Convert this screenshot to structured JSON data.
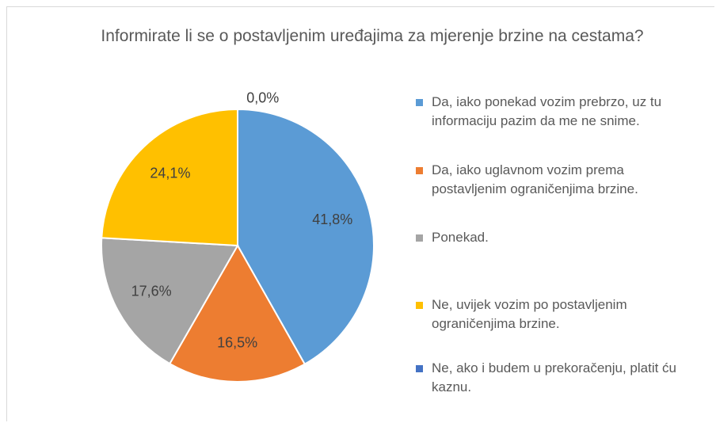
{
  "chart_data": {
    "type": "pie",
    "title": "Informirate li se o postavljenim uređajima za mjerenje brzine na cestama?",
    "categories": [
      "Da, iako ponekad vozim prebrzo, uz tu informaciju pazim da me ne snime.",
      "Da, iako uglavnom vozim prema postavljenim ograničenjima brzine.",
      "Ponekad.",
      "Ne, uvijek vozim po postavljenim ograničenjima brzine.",
      "Ne, ako i budem u prekoračenju, platit ću kaznu."
    ],
    "values": [
      41.8,
      16.5,
      17.6,
      24.1,
      0.0
    ],
    "value_labels": [
      "41,8%",
      "16,5%",
      "17,6%",
      "24,1%",
      "0,0%"
    ],
    "colors": [
      "#5b9bd5",
      "#ed7d31",
      "#a5a5a5",
      "#ffc000",
      "#4472c4"
    ],
    "legend": "right"
  }
}
